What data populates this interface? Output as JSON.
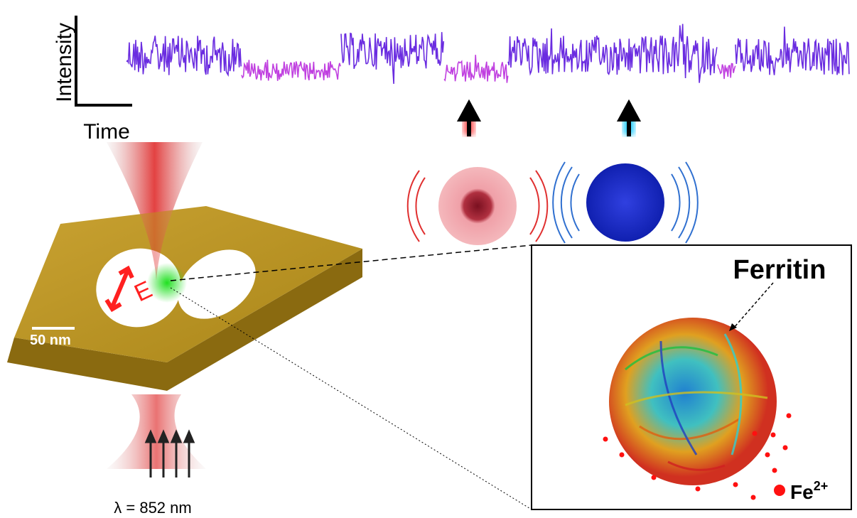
{
  "trace_axes": {
    "y_label": "Intensity",
    "x_label": "Time"
  },
  "device": {
    "field_label": "E",
    "scale_bar": "50 nm",
    "wavelength": "λ = 852 nm"
  },
  "inset": {
    "protein_label": "Ferritin",
    "ion_label": {
      "text": "Fe",
      "superscript": "2+"
    }
  }
}
